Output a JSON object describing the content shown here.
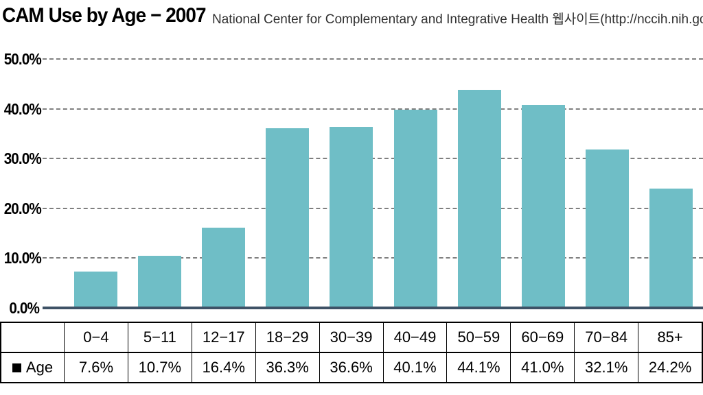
{
  "header": {
    "title": "CAM Use by Age − 2007",
    "subtitle": "National Center for Complementary and Integrative Health 웹사이트(http://nccih.nih.gov)"
  },
  "chart_data": {
    "type": "bar",
    "title": "CAM Use by Age − 2007",
    "source": "National Center for Complementary and Integrative Health 웹사이트(http://nccih.nih.gov)",
    "categories": [
      "0−4",
      "5−11",
      "12−17",
      "18−29",
      "30−39",
      "40−49",
      "50−59",
      "60−69",
      "70−84",
      "85+"
    ],
    "series": [
      {
        "name": "Age",
        "values": [
          7.6,
          10.7,
          16.4,
          36.3,
          36.6,
          40.1,
          44.1,
          41.0,
          32.1,
          24.2
        ]
      }
    ],
    "xlabel": "",
    "ylabel": "",
    "ylim": [
      0,
      50
    ],
    "ytick_labels": [
      "0.0%",
      "10.0%",
      "20.0%",
      "30.0%",
      "40.0%",
      "50.0%"
    ],
    "grid": "horizontal-dashed",
    "legend_position": "table-below"
  },
  "table": {
    "row_label": "Age",
    "headers": [
      "0−4",
      "5−11",
      "12−17",
      "18−29",
      "30−39",
      "40−49",
      "50−59",
      "60−69",
      "70−84",
      "85+"
    ],
    "values": [
      "7.6%",
      "10.7%",
      "16.4%",
      "36.3%",
      "36.6%",
      "40.1%",
      "44.1%",
      "41.0%",
      "32.1%",
      "24.2%"
    ]
  },
  "colors": {
    "bar": "#6fbec6",
    "baseline": "#3e5266",
    "gridline": "#7f7f7f",
    "title_text": "#000000",
    "subtitle_text": "#303030",
    "table_border": "#000000"
  }
}
